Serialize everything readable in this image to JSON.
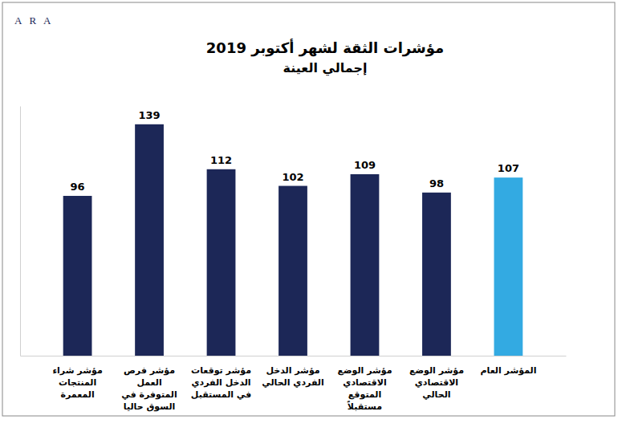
{
  "logo": "ARA",
  "chart_data": {
    "type": "bar",
    "title": "مؤشرات الثقة لشهر أكتوبر 2019",
    "subtitle": "إجمالي العينة",
    "categories": [
      "مؤشر شراء المنتجات المعمرة",
      "مؤشر فرص العمل المتوفرة في السوق حاليا",
      "مؤشر توقعات الدخل الفردي في المستقبل",
      "مؤشر الدخل الفردي الحالي",
      "مؤشر الوضع الاقتصادي المتوقع مستقبلاً",
      "مؤشر الوضع الاقتصادي الحالي",
      "المؤشر العام"
    ],
    "values": [
      96,
      139,
      112,
      102,
      109,
      98,
      107
    ],
    "colors": [
      "#1c2757",
      "#1c2757",
      "#1c2757",
      "#1c2757",
      "#1c2757",
      "#1c2757",
      "#33aae2"
    ],
    "ylim": [
      0,
      150
    ],
    "grid": false,
    "data_labels": true,
    "tick_labels": "x"
  }
}
